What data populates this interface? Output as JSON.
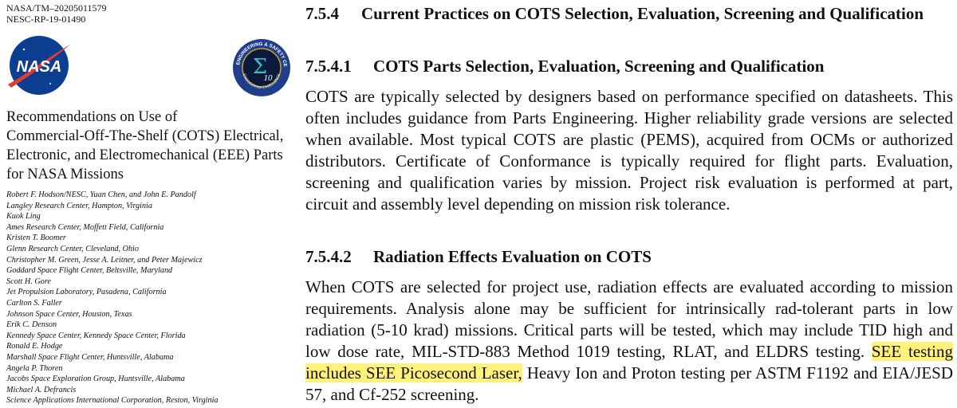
{
  "left": {
    "report_ids": [
      "NASA/TM–20205011579",
      "NESC-RP-19-01490"
    ],
    "nasa_logo": "NASA",
    "nesc_logo": {
      "ring": "NASA ENGINEERING & SAFETY CENTER",
      "bottom": "ENGINEERING EXCELLENCE",
      "symbol": "Σ",
      "number": "10"
    },
    "title_lines": [
      "Recommendations on Use of",
      "Commercial-Off-The-Shelf (COTS) Electrical,",
      "Electronic, and Electromechanical (EEE) Parts",
      "for NASA Missions"
    ],
    "authors": [
      {
        "names": "Robert F. Hodson/NESC, Yuan Chen, and John E. Pandolf",
        "affiliation": "Langley Research Center, Hampton, Virginia"
      },
      {
        "names": "Kuok Ling",
        "affiliation": "Ames Research Center, Moffett Field, California"
      },
      {
        "names": "Kristen T. Boomer",
        "affiliation": "Glenn Research Center, Cleveland, Ohio"
      },
      {
        "names": "Christopher M. Green, Jesse A. Leitner, and Peter Majewicz",
        "affiliation": "Goddard Space Flight Center, Beltsville, Maryland"
      },
      {
        "names": "Scott H. Gore",
        "affiliation": "Jet Propulsion Laboratory, Pasadena, California"
      },
      {
        "names": "Carlton S. Faller",
        "affiliation": "Johnson Space Center, Houston, Texas"
      },
      {
        "names": "Erik C. Denson",
        "affiliation": "Kennedy Space Center, Kennedy Space Center, Florida"
      },
      {
        "names": "Ronald E. Hodge",
        "affiliation": "Marshall Space Flight Center, Huntsville, Alabama"
      },
      {
        "names": "Angela P. Thoren",
        "affiliation": "Jacobs Space Exploration Group, Huntsville, Alabama"
      },
      {
        "names": "Michael A. Defrancis",
        "affiliation": "Science Applications International Corporation, Reston, Virginia"
      }
    ]
  },
  "right": {
    "section": {
      "number": "7.5.4",
      "title": "Current Practices on COTS Selection, Evaluation, Screening and Qualification"
    },
    "subsections": [
      {
        "number": "7.5.4.1",
        "title": "COTS Parts Selection, Evaluation, Screening and Qualification",
        "text": "COTS are typically selected by designers based on performance specified on datasheets. This often includes guidance from Parts Engineering. Higher reliability grade versions are selected when available. Most typical COTS are plastic (PEMS), acquired from OCMs or authorized distributors. Certificate of Conformance is typically required for flight parts. Evaluation, screening and qualification varies by mission. Project risk evaluation is performed at part, circuit and assembly level depending on mission risk tolerance."
      },
      {
        "number": "7.5.4.2",
        "title": "Radiation Effects Evaluation on COTS",
        "text_before": "When COTS are selected for project use, radiation effects are evaluated according to mission requirements. Analysis alone may be sufficient for intrinsically rad-tolerant parts in low radiation (5-10 krad) missions. Critical parts will be tested, which may include TID high and low dose rate, MIL-STD-883 Method 1019 testing, RLAT, and ELDRS testing. ",
        "highlight": "SEE testing includes SEE Picosecond Laser,",
        "text_after": " Heavy Ion and Proton testing per ASTM F1192 and EIA/JESD 57, and Cf-252 screening."
      }
    ]
  }
}
